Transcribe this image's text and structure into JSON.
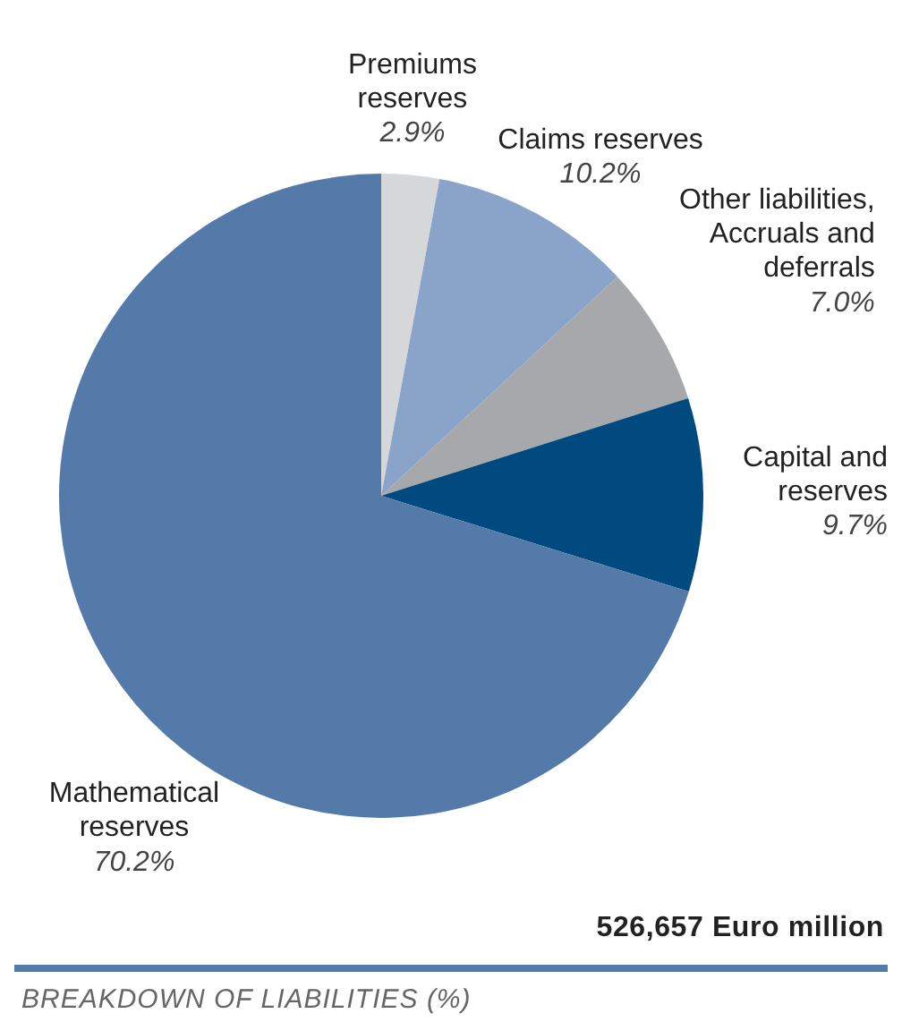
{
  "chart_data": {
    "type": "pie",
    "title": "BREAKDOWN OF LIABILITIES (%)",
    "annotations": [
      "526,657 Euro million"
    ],
    "categories": [
      "Premiums reserves",
      "Claims reserves",
      "Other liabilities, Accruals and deferrals",
      "Capital and reserves",
      "Mathematical reserves"
    ],
    "values": [
      2.9,
      10.2,
      7.0,
      9.7,
      70.2
    ],
    "value_labels": [
      "2.9%",
      "10.2%",
      "7.0%",
      "9.7%",
      "70.2%"
    ],
    "colors": [
      "#d5d7d9",
      "#89a3c9",
      "#a6a8ab",
      "#004a7f",
      "#547aa9"
    ],
    "legend": false
  }
}
